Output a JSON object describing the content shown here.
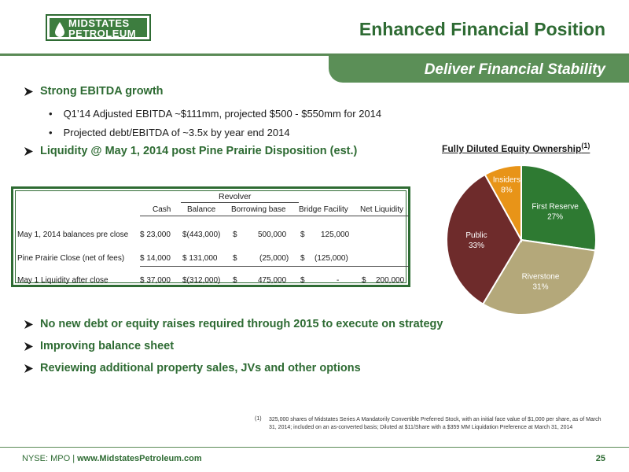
{
  "logo": {
    "line1": "MIDSTATES",
    "line2": "PETROLEUM"
  },
  "header": {
    "title": "Enhanced Financial Position",
    "subtitle": "Deliver Financial Stability"
  },
  "bullets": {
    "b1": "Strong EBITDA growth",
    "b1_sub1": "Q1’14 Adjusted EBITDA ~$111mm, projected $500 - $550mm for 2014",
    "b1_sub2": "Projected debt/EBITDA of ~3.5x by year end 2014",
    "b2": "Liquidity @ May 1, 2014 post Pine Prairie Disposition (est.)",
    "b3": "No new debt or equity raises required through 2015 to execute on strategy",
    "b4": "Improving balance sheet",
    "b5": "Reviewing additional property sales, JVs and other options"
  },
  "table": {
    "group_header": "Revolver",
    "headers": {
      "cash": "Cash",
      "balance": "Balance",
      "borrowing": "Borrowing base",
      "bridge": "Bridge Facility",
      "net": "Net Liquidity"
    },
    "rows": [
      {
        "label": "May 1, 2014 balances pre close",
        "cash": "$ 23,000",
        "balance": "$(443,000)",
        "borrow_sym": "$",
        "borrowing": "500,000",
        "bridge_sym": "$",
        "bridge": "125,000",
        "net_sym": "",
        "net": ""
      },
      {
        "label": "Pine Prairie Close (net of fees)",
        "cash": "$ 14,000",
        "balance": "$ 131,000",
        "borrow_sym": "$",
        "borrowing": "(25,000)",
        "bridge_sym": "$",
        "bridge": "(125,000)",
        "net_sym": "",
        "net": ""
      },
      {
        "label": "May 1 Liquidity after close",
        "cash": "$ 37,000",
        "balance": "$(312,000)",
        "borrow_sym": "$",
        "borrowing": "475,000",
        "bridge_sym": "$",
        "bridge": "-",
        "net_sym": "$",
        "net": "200,000"
      }
    ]
  },
  "chart_title": "Fully Diluted Equity Ownership",
  "chart_title_note": "(1)",
  "chart_data": {
    "type": "pie",
    "title": "Fully Diluted Equity Ownership",
    "slices": [
      {
        "name": "First Reserve",
        "value": 27,
        "label": "27%",
        "color": "#2e7a32"
      },
      {
        "name": "Riverstone",
        "value": 31,
        "label": "31%",
        "color": "#b4a87a"
      },
      {
        "name": "Public",
        "value": 33,
        "label": "33%",
        "color": "#6e2b2b"
      },
      {
        "name": "Insiders",
        "value": 8,
        "label": "8%",
        "color": "#e89418"
      }
    ]
  },
  "footnote": {
    "num": "(1)",
    "text": "325,000 shares of Midstates Series A Mandatorily Convertible Preferred Stock, with an initial face value of $1,000 per share, as of March 31, 2014; included on an as-converted basis; Diluted at $11/Share with a $359 MM Liquidation Preference at March 31, 2014"
  },
  "footer": {
    "ticker": "NYSE: MPO",
    "separator": "|",
    "website": "www.MidstatesPetroleum.com",
    "page": "25"
  },
  "colors": {
    "brand_green": "#2e6b33",
    "band_green": "#5b8f57"
  }
}
